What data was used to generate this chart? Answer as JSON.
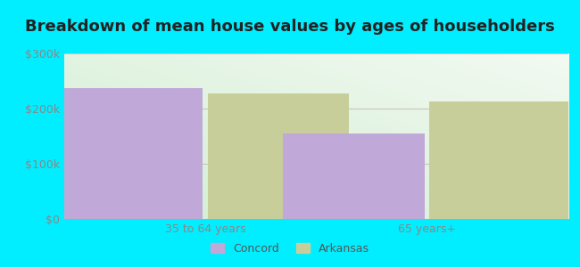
{
  "title": "Breakdown of mean house values by ages of householders",
  "categories": [
    "35 to 64 years",
    "65 years+"
  ],
  "series": {
    "Concord": [
      237000,
      155000
    ],
    "Arkansas": [
      228000,
      213000
    ]
  },
  "bar_colors": {
    "Concord": "#c0a8d8",
    "Arkansas": "#c8ce9a"
  },
  "ylim": [
    0,
    300000
  ],
  "yticks": [
    0,
    100000,
    200000,
    300000
  ],
  "ytick_labels": [
    "$0",
    "$100k",
    "$200k",
    "$300k"
  ],
  "background_outer": "#00eeff",
  "grid_color": "#d0c0c0",
  "title_fontsize": 13,
  "tick_fontsize": 9,
  "legend_fontsize": 9,
  "bar_width": 0.28,
  "group_positions": [
    0.28,
    0.72
  ]
}
